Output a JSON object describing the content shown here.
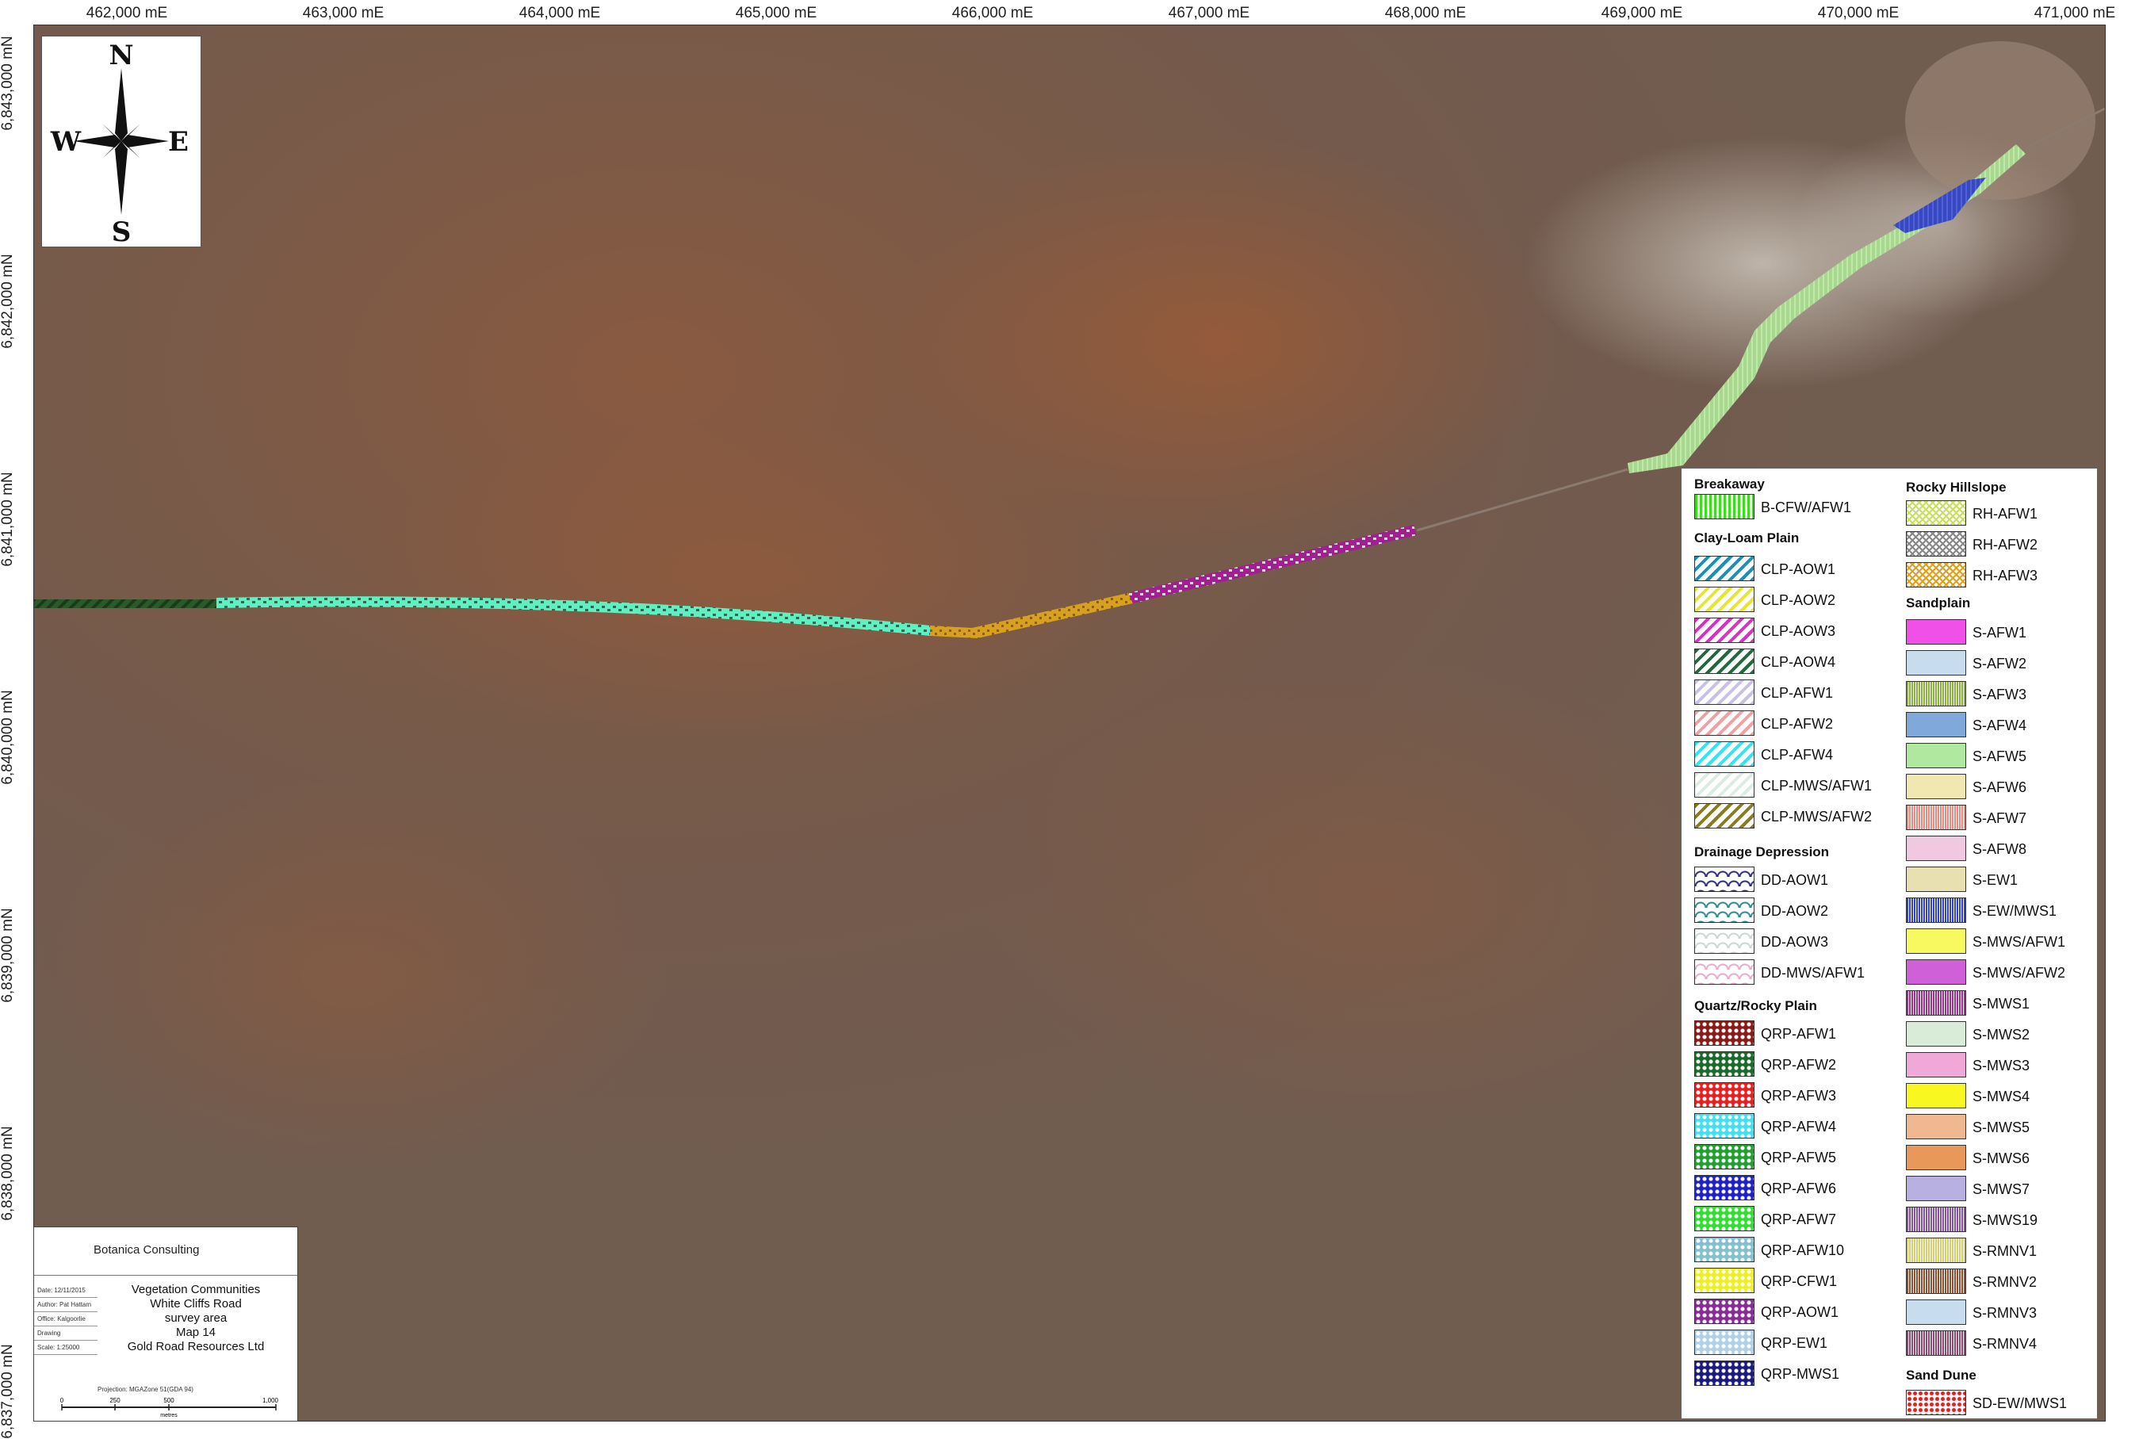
{
  "axis": {
    "easting_labels": [
      "462,000 mE",
      "463,000 mE",
      "464,000 mE",
      "465,000 mE",
      "466,000 mE",
      "467,000 mE",
      "468,000 mE",
      "469,000 mE",
      "470,000 mE",
      "471,000 mE"
    ],
    "northing_labels": [
      "6,843,000 mN",
      "6,842,000 mN",
      "6,841,000 mN",
      "6,840,000 mN",
      "6,839,000 mN",
      "6,838,000 mN",
      "6,837,000 mN"
    ]
  },
  "north_arrow": {
    "n": "N",
    "s": "S",
    "e": "E",
    "w": "W"
  },
  "legend": {
    "col1": [
      {
        "heading": "Breakaway",
        "items": [
          {
            "label": "B-CFW/AFW1",
            "color": "#39e01a",
            "pattern": "vlines"
          }
        ]
      },
      {
        "heading": "Clay-Loam Plain",
        "items": [
          {
            "label": "CLP-AOW1",
            "color": "#1a8fb8",
            "pattern": "diag"
          },
          {
            "label": "CLP-AOW2",
            "color": "#e6e62a",
            "pattern": "diag"
          },
          {
            "label": "CLP-AOW3",
            "color": "#d630c4",
            "pattern": "diag"
          },
          {
            "label": "CLP-AOW4",
            "color": "#1f6b3a",
            "pattern": "diag"
          },
          {
            "label": "CLP-AFW1",
            "color": "#c8c0e6",
            "pattern": "diag"
          },
          {
            "label": "CLP-AFW2",
            "color": "#f0a0a0",
            "pattern": "diag"
          },
          {
            "label": "CLP-AFW4",
            "color": "#30e6f0",
            "pattern": "diag"
          },
          {
            "label": "CLP-MWS/AFW1",
            "color": "#d8eee0",
            "pattern": "diag"
          },
          {
            "label": "CLP-MWS/AFW2",
            "color": "#8a7a20",
            "pattern": "diag"
          }
        ]
      },
      {
        "heading": "Drainage Depression",
        "items": [
          {
            "label": "DD-AOW1",
            "color": "#2a2a80",
            "pattern": "wave"
          },
          {
            "label": "DD-AOW2",
            "color": "#2a8a8a",
            "pattern": "wave"
          },
          {
            "label": "DD-AOW3",
            "color": "#c8d8d0",
            "pattern": "wave"
          },
          {
            "label": "DD-MWS/AFW1",
            "color": "#e8a8d0",
            "pattern": "wave"
          }
        ]
      },
      {
        "heading": "Quartz/Rocky Plain",
        "items": [
          {
            "label": "QRP-AFW1",
            "color": "#8a1a1a",
            "pattern": "dots"
          },
          {
            "label": "QRP-AFW2",
            "color": "#1a6a2a",
            "pattern": "dots"
          },
          {
            "label": "QRP-AFW3",
            "color": "#e62020",
            "pattern": "dots"
          },
          {
            "label": "QRP-AFW4",
            "color": "#40e0f0",
            "pattern": "dots"
          },
          {
            "label": "QRP-AFW5",
            "color": "#20a030",
            "pattern": "dots"
          },
          {
            "label": "QRP-AFW6",
            "color": "#2020c8",
            "pattern": "dots"
          },
          {
            "label": "QRP-AFW7",
            "color": "#30e030",
            "pattern": "dots"
          },
          {
            "label": "QRP-AFW10",
            "color": "#80c0d0",
            "pattern": "dots"
          },
          {
            "label": "QRP-CFW1",
            "color": "#f0f020",
            "pattern": "dots"
          },
          {
            "label": "QRP-AOW1",
            "color": "#8a2a9a",
            "pattern": "dots"
          },
          {
            "label": "QRP-EW1",
            "color": "#b0d0e8",
            "pattern": "dots"
          },
          {
            "label": "QRP-MWS1",
            "color": "#1a1a80",
            "pattern": "dots"
          }
        ]
      }
    ],
    "col2": [
      {
        "heading": "Rocky Hillslope",
        "items": [
          {
            "label": "RH-AFW1",
            "color": "#c8e060",
            "pattern": "cross"
          },
          {
            "label": "RH-AFW2",
            "color": "#888888",
            "pattern": "cross"
          },
          {
            "label": "RH-AFW3",
            "color": "#e0a020",
            "pattern": "cross"
          }
        ]
      },
      {
        "heading": "Sandplain",
        "items": [
          {
            "label": "S-AFW1",
            "color": "#f050e8",
            "pattern": "solid"
          },
          {
            "label": "S-AFW2",
            "color": "#c8dcf0",
            "pattern": "solid"
          },
          {
            "label": "S-AFW3",
            "color": "#8ab040",
            "pattern": "fine"
          },
          {
            "label": "S-AFW4",
            "color": "#80a8d8",
            "pattern": "solid"
          },
          {
            "label": "S-AFW5",
            "color": "#b0e8a0",
            "pattern": "solid"
          },
          {
            "label": "S-AFW6",
            "color": "#f0e8b0",
            "pattern": "solid"
          },
          {
            "label": "S-AFW7",
            "color": "#e88a80",
            "pattern": "fine"
          },
          {
            "label": "S-AFW8",
            "color": "#f0c8e0",
            "pattern": "solid"
          },
          {
            "label": "S-EW1",
            "color": "#e8e0b0",
            "pattern": "solid"
          },
          {
            "label": "S-EW/MWS1",
            "color": "#3040c8",
            "pattern": "fine"
          },
          {
            "label": "S-MWS/AFW1",
            "color": "#f8f860",
            "pattern": "solid"
          },
          {
            "label": "S-MWS/AFW2",
            "color": "#d060d8",
            "pattern": "solid"
          },
          {
            "label": "S-MWS1",
            "color": "#a03090",
            "pattern": "fine"
          },
          {
            "label": "S-MWS2",
            "color": "#d8ecd8",
            "pattern": "solid"
          },
          {
            "label": "S-MWS3",
            "color": "#f0a8d8",
            "pattern": "solid"
          },
          {
            "label": "S-MWS4",
            "color": "#f8f820",
            "pattern": "solid"
          },
          {
            "label": "S-MWS5",
            "color": "#f0b890",
            "pattern": "solid"
          },
          {
            "label": "S-MWS6",
            "color": "#e89858",
            "pattern": "solid"
          },
          {
            "label": "S-MWS7",
            "color": "#b8b0e0",
            "pattern": "solid"
          },
          {
            "label": "S-MWS19",
            "color": "#8850a0",
            "pattern": "fine"
          },
          {
            "label": "S-RMNV1",
            "color": "#d8d070",
            "pattern": "fine"
          },
          {
            "label": "S-RMNV2",
            "color": "#905030",
            "pattern": "fine"
          },
          {
            "label": "S-RMNV3",
            "color": "#c8dcf0",
            "pattern": "solid"
          },
          {
            "label": "S-RMNV4",
            "color": "#904870",
            "pattern": "fine"
          }
        ]
      },
      {
        "heading": "Sand Dune",
        "items": [
          {
            "label": "SD-EW/MWS1",
            "color": "#e02020",
            "pattern": "dotsparse"
          }
        ]
      }
    ]
  },
  "title_block": {
    "company": "Botanica Consulting",
    "title_lines": [
      "Vegetation Communities",
      "White Cliffs Road",
      "survey area",
      "Map 14",
      "Gold Road Resources Ltd"
    ],
    "meta": [
      "Date: 12/11/2015",
      "Author: Pat Hattam",
      "Office: Kalgoorlie",
      "Drawing",
      "Scale: 1:25000"
    ],
    "projection": "Projection: MGAZone 51(GDA 94)",
    "scale_ticks": [
      "0",
      "250",
      "500",
      "1,000"
    ],
    "scale_unit": "metres"
  }
}
